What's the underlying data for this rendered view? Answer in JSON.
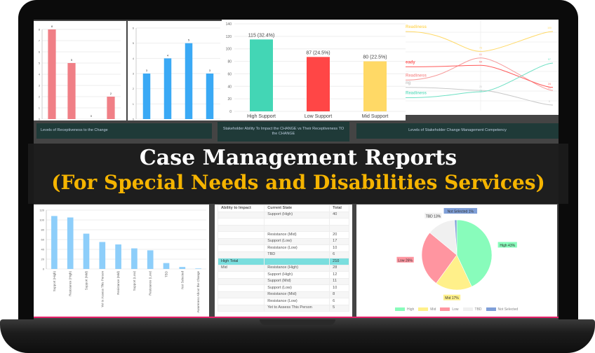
{
  "banner": {
    "title": "Case Management Reports",
    "subtitle": "(For Special Needs and Disabilities Services)"
  },
  "cards": [
    "Levels of Receptiveness to the Change",
    "Stakeholder Ability To Impact the CHANGE vs Their Receptiveness TO the CHANGE",
    "Levels of Stakeholder Change Management Competency"
  ],
  "colors": {
    "red": "#f07f86",
    "blue": "#3aa9f5",
    "teal": "#43d6b5",
    "orange_red": "#ff4646",
    "yellow": "#ffd966",
    "light_blue": "#8dcefa",
    "title_gold": "#f5b400",
    "accent_pink": "#e8206a"
  },
  "chart_data": [
    {
      "type": "bar",
      "values": [
        8,
        5,
        0,
        2
      ],
      "ylim": [
        0,
        8
      ],
      "yticks": [
        0,
        1,
        2,
        3,
        4,
        5,
        6,
        7,
        8
      ],
      "data_labels": [
        "8",
        "5",
        "0",
        "2"
      ],
      "grid": true
    },
    {
      "type": "bar",
      "values": [
        3,
        4,
        5,
        3
      ],
      "ylim": [
        0,
        6
      ],
      "yticks": [
        0,
        1,
        2,
        3,
        4,
        5,
        6
      ],
      "data_labels": [
        "3",
        "4",
        "5",
        "3"
      ],
      "grid": true
    },
    {
      "type": "bar",
      "categories": [
        "High Support",
        "Low Support",
        "Mid Support"
      ],
      "values": [
        115,
        87,
        80
      ],
      "data_labels": [
        "115 (32.4%)",
        "87 (24.5%)",
        "80 (22.5%)"
      ],
      "ylim": [
        0,
        140
      ],
      "yticks": [
        0,
        20,
        40,
        60,
        80,
        100,
        120,
        140
      ],
      "grid": true
    },
    {
      "type": "line",
      "series": [
        {
          "name": "Readiness",
          "color": "#f79a9a",
          "values": [
            null,
            64,
            20
          ]
        },
        {
          "name": "eady",
          "color": "#ff5a5a",
          "values": [
            null,
            54,
            24
          ]
        },
        {
          "name": "Readiness",
          "color": "#ffd966",
          "values": [
            null,
            73,
            100
          ]
        },
        {
          "name": "ng",
          "color": "#c8c8c8",
          "values": [
            null,
            20,
            0
          ]
        },
        {
          "name": "Readiness",
          "color": "#6ee0c4",
          "values": [
            null,
            18,
            57
          ]
        }
      ],
      "grid": true
    },
    {
      "type": "bar",
      "categories": [
        "Support (High)",
        "Resistance (High)",
        "Support (Mid)",
        "Yet to Assess This Person",
        "Resistance (Mid)",
        "Support (Low)",
        "Resistance (Low)",
        "TBD",
        "Not Selected",
        "Awareness About the Change"
      ],
      "values": [
        108,
        105,
        72,
        55,
        50,
        42,
        38,
        12,
        4,
        1
      ],
      "ylim": [
        0,
        120
      ],
      "yticks": [
        0,
        20,
        40,
        60,
        80,
        100,
        120
      ],
      "grid": true
    },
    {
      "type": "table",
      "headers": [
        "Ability to Impact",
        "Current State",
        "Total"
      ],
      "rows": [
        [
          "",
          "Support (High)",
          "40"
        ],
        [
          "",
          "",
          ""
        ],
        [
          "",
          "",
          ""
        ],
        [
          "",
          "Resistance (Mid)",
          "20"
        ],
        [
          "",
          "Support (Low)",
          "17"
        ],
        [
          "",
          "Resistance (Low)",
          "10"
        ],
        [
          "",
          "TBD",
          "6"
        ],
        [
          "High Total",
          "",
          "210"
        ],
        [
          "Mid",
          "Resistance (High)",
          "28"
        ],
        [
          "",
          "Support (High)",
          "12"
        ],
        [
          "",
          "Support (Mid)",
          "11"
        ],
        [
          "",
          "Support (Low)",
          "10"
        ],
        [
          "",
          "Resistance (Mid)",
          "8"
        ],
        [
          "",
          "Resistance (Low)",
          "6"
        ],
        [
          "",
          "Yet to Assess This Person",
          "5"
        ]
      ]
    },
    {
      "type": "pie",
      "slices": [
        {
          "name": "High",
          "value": 43,
          "label": "High 43%",
          "color": "#88fcbb"
        },
        {
          "name": "Mid",
          "value": 17,
          "label": "Mid 17%",
          "color": "#fff08a"
        },
        {
          "name": "Low",
          "value": 26,
          "label": "Low 26%",
          "color": "#ff95a0"
        },
        {
          "name": "TBD",
          "value": 13,
          "label": "TBD 13%",
          "color": "#f0f0f0"
        },
        {
          "name": "Not Selected",
          "value": 1,
          "label": "Not Selected 1%",
          "color": "#7f9fd8"
        }
      ],
      "legend": "bottom"
    }
  ]
}
